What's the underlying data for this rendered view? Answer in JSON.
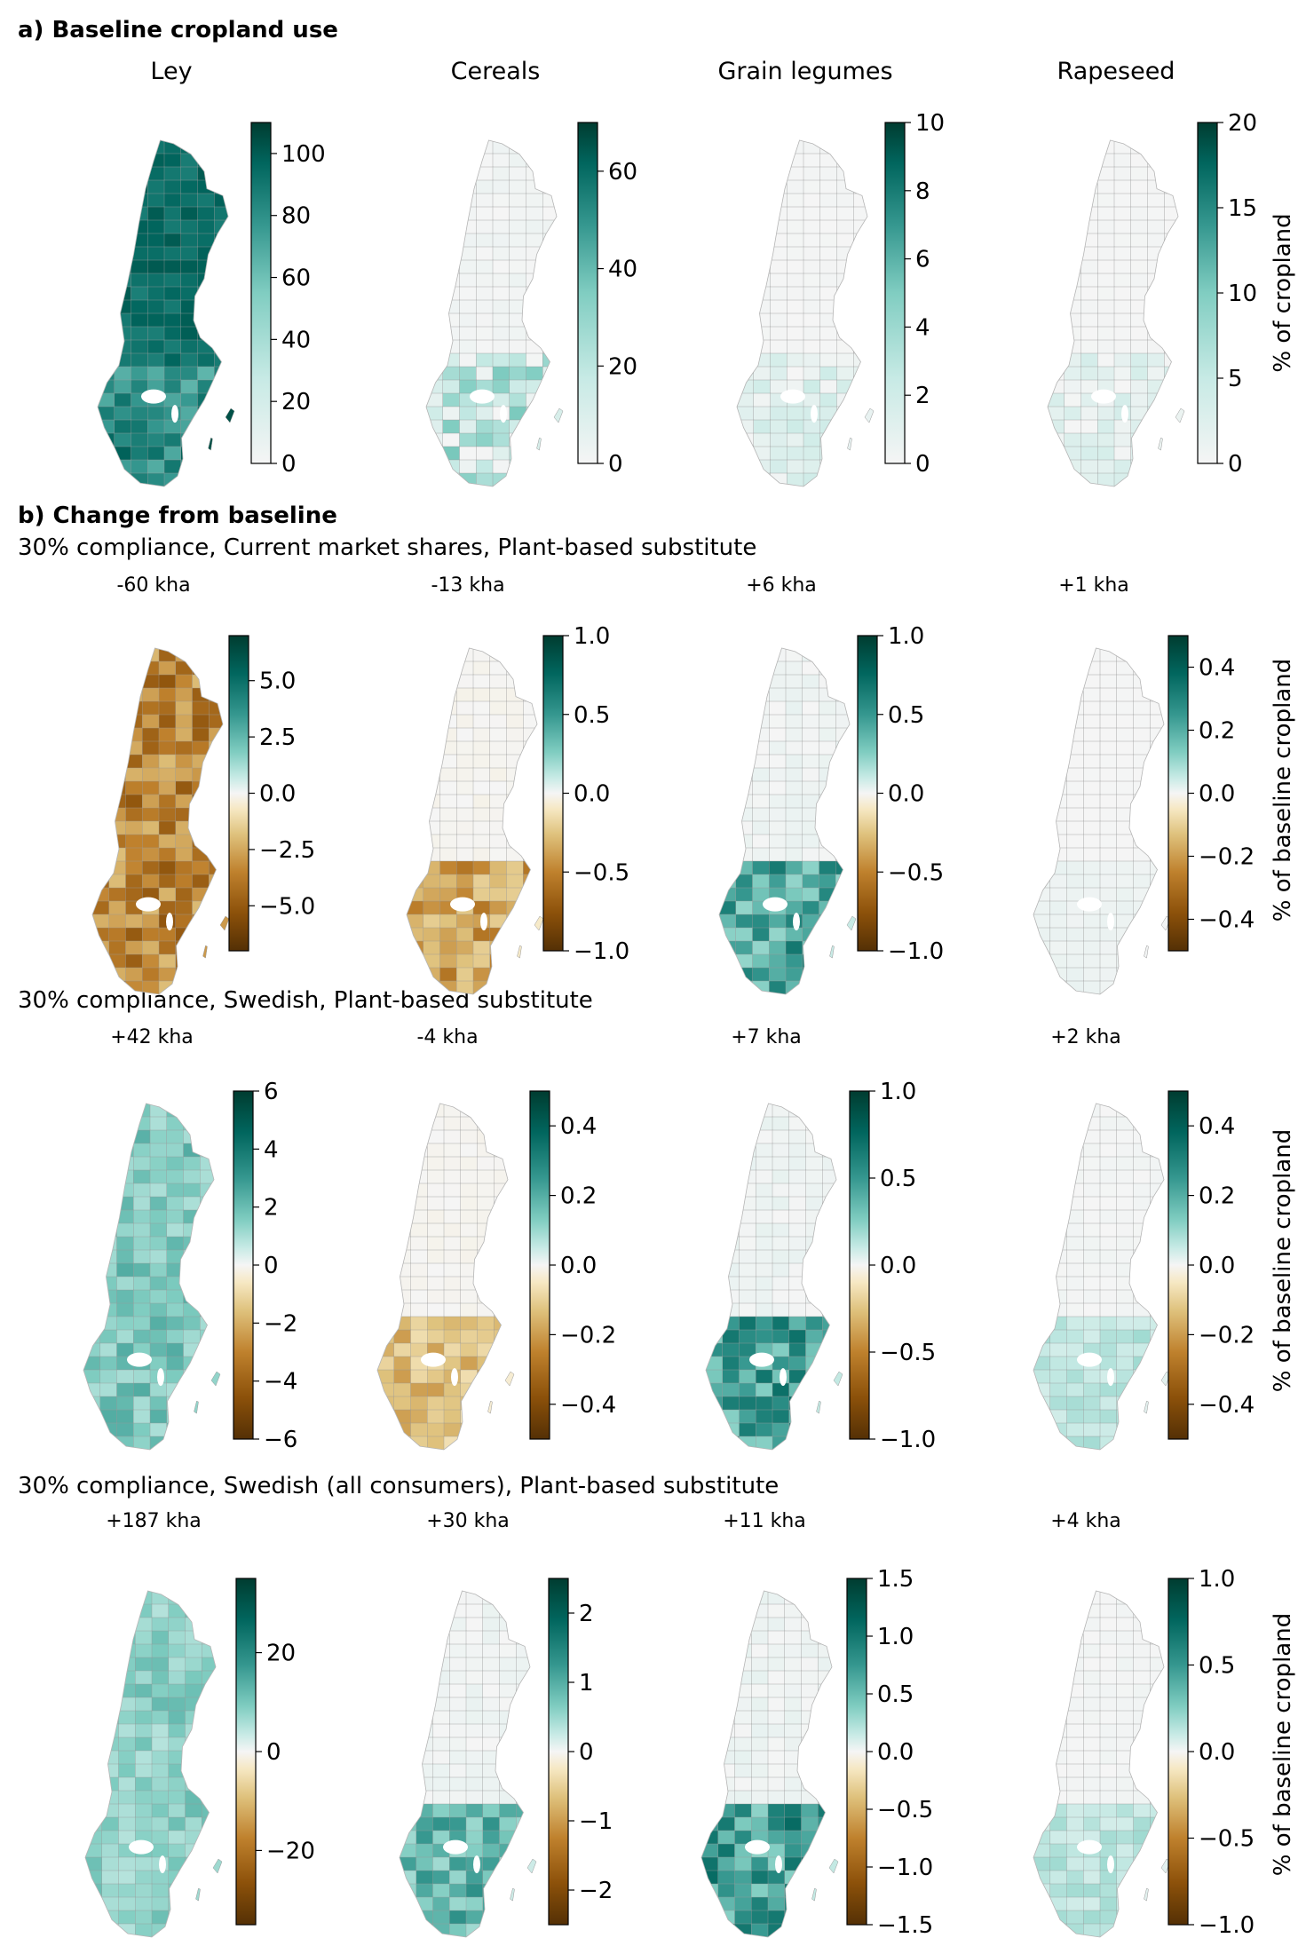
{
  "section_a": {
    "title": "a) Baseline cropland use",
    "crops": [
      "Ley",
      "Cereals",
      "Grain legumes",
      "Rapeseed"
    ],
    "colorbar_label": "% of cropland",
    "colorbars": [
      {
        "min": 0,
        "max": 110,
        "ticks": [
          "0",
          "20",
          "40",
          "60",
          "80",
          "100"
        ],
        "tick_values": [
          0,
          20,
          40,
          60,
          80,
          100
        ]
      },
      {
        "min": 0,
        "max": 70,
        "ticks": [
          "0",
          "20",
          "40",
          "60"
        ],
        "tick_values": [
          0,
          20,
          40,
          60
        ]
      },
      {
        "min": 0,
        "max": 10,
        "ticks": [
          "0",
          "2",
          "4",
          "6",
          "8",
          "10"
        ],
        "tick_values": [
          0,
          2,
          4,
          6,
          8,
          10
        ]
      },
      {
        "min": 0,
        "max": 20,
        "ticks": [
          "0",
          "5",
          "10",
          "15",
          "20"
        ],
        "tick_values": [
          0,
          5,
          10,
          15,
          20
        ]
      }
    ],
    "map_intensity": [
      0.82,
      0.12,
      0.05,
      0.04
    ]
  },
  "section_b": {
    "title": "b) Change from baseline",
    "colorbar_label": "% of baseline cropland",
    "scenarios": [
      {
        "title": "30% compliance, Current market shares, Plant-based substitute",
        "panel_labels": [
          "-60 kha",
          "-13 kha",
          "+6 kha",
          "+1 kha"
        ],
        "colorbars": [
          {
            "min": -7,
            "max": 7,
            "ticks": [
              "−5.0",
              "−2.5",
              "0.0",
              "2.5",
              "5.0"
            ],
            "tick_values": [
              -5,
              -2.5,
              0,
              2.5,
              5
            ]
          },
          {
            "min": -1,
            "max": 1,
            "ticks": [
              "−1.0",
              "−0.5",
              "0.0",
              "0.5",
              "1.0"
            ],
            "tick_values": [
              -1,
              -0.5,
              0,
              0.5,
              1
            ]
          },
          {
            "min": -1,
            "max": 1,
            "ticks": [
              "−1.0",
              "−0.5",
              "0.0",
              "0.5",
              "1.0"
            ],
            "tick_values": [
              -1,
              -0.5,
              0,
              0.5,
              1
            ]
          },
          {
            "min": -0.5,
            "max": 0.5,
            "ticks": [
              "−0.4",
              "−0.2",
              "0.0",
              "0.2",
              "0.4"
            ],
            "tick_values": [
              -0.4,
              -0.2,
              0,
              0.2,
              0.4
            ]
          }
        ],
        "map_change": [
          -0.75,
          -0.25,
          0.28,
          0.02
        ]
      },
      {
        "title": "30% compliance, Swedish, Plant-based substitute",
        "panel_labels": [
          "+42 kha",
          "-4 kha",
          "+7 kha",
          "+2 kha"
        ],
        "colorbars": [
          {
            "min": -6,
            "max": 6,
            "ticks": [
              "−6",
              "−4",
              "−2",
              "0",
              "2",
              "4",
              "6"
            ],
            "tick_values": [
              -6,
              -4,
              -2,
              0,
              2,
              4,
              6
            ]
          },
          {
            "min": -0.5,
            "max": 0.5,
            "ticks": [
              "−0.4",
              "−0.2",
              "0.0",
              "0.2",
              "0.4"
            ],
            "tick_values": [
              -0.4,
              -0.2,
              0,
              0.2,
              0.4
            ]
          },
          {
            "min": -1,
            "max": 1,
            "ticks": [
              "−1.0",
              "−0.5",
              "0.0",
              "0.5",
              "1.0"
            ],
            "tick_values": [
              -1,
              -0.5,
              0,
              0.5,
              1
            ]
          },
          {
            "min": -0.5,
            "max": 0.5,
            "ticks": [
              "−0.4",
              "−0.2",
              "0.0",
              "0.2",
              "0.4"
            ],
            "tick_values": [
              -0.4,
              -0.2,
              0,
              0.2,
              0.4
            ]
          }
        ],
        "map_change": [
          0.5,
          -0.2,
          0.3,
          0.12
        ]
      },
      {
        "title": "30% compliance, Swedish (all consumers), Plant-based substitute",
        "panel_labels": [
          "+187 kha",
          "+30 kha",
          "+11 kha",
          "+4 kha"
        ],
        "colorbars": [
          {
            "min": -35,
            "max": 35,
            "ticks": [
              "−20",
              "0",
              "20"
            ],
            "tick_values": [
              -20,
              0,
              20
            ]
          },
          {
            "min": -2.5,
            "max": 2.5,
            "ticks": [
              "−2",
              "−1",
              "0",
              "1",
              "2"
            ],
            "tick_values": [
              -2,
              -1,
              0,
              1,
              2
            ]
          },
          {
            "min": -1.5,
            "max": 1.5,
            "ticks": [
              "−1.5",
              "−1.0",
              "−0.5",
              "0.0",
              "0.5",
              "1.0",
              "1.5"
            ],
            "tick_values": [
              -1.5,
              -1,
              -0.5,
              0,
              0.5,
              1,
              1.5
            ]
          },
          {
            "min": -1,
            "max": 1,
            "ticks": [
              "−1.0",
              "−0.5",
              "0.0",
              "0.5",
              "1.0"
            ],
            "tick_values": [
              -1,
              -0.5,
              0,
              0.5,
              1
            ]
          }
        ],
        "map_change": [
          0.45,
          0.25,
          0.3,
          0.12
        ]
      }
    ]
  },
  "colors": {
    "sequential": [
      "#f5f5f5",
      "#c7eae5",
      "#80cdc1",
      "#35978f",
      "#01665e",
      "#003c30"
    ],
    "diverging": [
      "#543005",
      "#8c510a",
      "#bf812d",
      "#dfc27d",
      "#f6e8c3",
      "#f5f5f5",
      "#c7eae5",
      "#80cdc1",
      "#35978f",
      "#01665e",
      "#003c30"
    ],
    "map_border": "#9a9a9a"
  }
}
